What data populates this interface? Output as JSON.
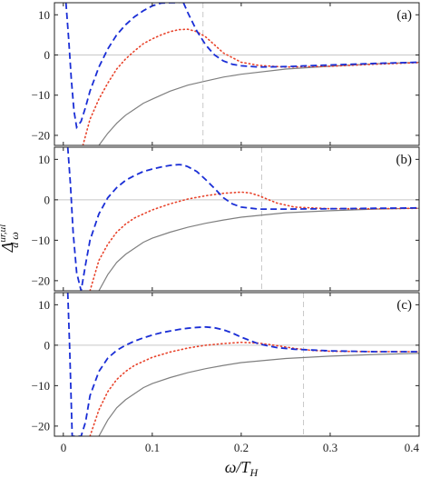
{
  "chart_data": {
    "type": "line",
    "xlabel": "ω/T_H",
    "ylabel": "Δ^{ur,ul}_{d ω}",
    "xlim": [
      -0.01,
      0.4
    ],
    "ylim": [
      -22.5,
      13
    ],
    "x_ticks": [
      0,
      0.1,
      0.2,
      0.3,
      0.4
    ],
    "x_tick_labels": [
      "0",
      "0.1",
      "0.2",
      "0.3",
      "0.4"
    ],
    "y_ticks": [
      -20,
      -10,
      0,
      10
    ],
    "y_tick_labels": [
      "−20",
      "−10",
      "0",
      "10"
    ],
    "grid": false,
    "legend": false,
    "panels": [
      {
        "label": "(a)",
        "vline_x": 0.157,
        "series": [
          {
            "style": "solid",
            "color": "#7f7f7f",
            "x": [
              0.04,
              0.05,
              0.06,
              0.07,
              0.08,
              0.09,
              0.1,
              0.12,
              0.14,
              0.16,
              0.18,
              0.2,
              0.25,
              0.3,
              0.35,
              0.4
            ],
            "y": [
              -22.5,
              -19.5,
              -17,
              -15,
              -13.5,
              -12,
              -11,
              -9,
              -7.5,
              -6.5,
              -5.5,
              -4.8,
              -3.5,
              -2.8,
              -2.2,
              -1.8
            ]
          },
          {
            "style": "dotted",
            "color": "#e8432b",
            "x": [
              0.022,
              0.03,
              0.04,
              0.05,
              0.06,
              0.07,
              0.08,
              0.09,
              0.1,
              0.11,
              0.12,
              0.13,
              0.14,
              0.15,
              0.16,
              0.17,
              0.18,
              0.2,
              0.22,
              0.25,
              0.3,
              0.35,
              0.4
            ],
            "y": [
              -22.5,
              -16,
              -11,
              -7,
              -3.5,
              -1,
              1,
              2.8,
              4,
              5,
              5.8,
              6.3,
              6.4,
              5.8,
              4.5,
              2.5,
              0.5,
              -1.8,
              -2.6,
              -3,
              -2.8,
              -2.3,
              -1.9
            ]
          },
          {
            "style": "dashed",
            "color": "#1a2ed6",
            "x": [
              0.003,
              0.006,
              0.009,
              0.012,
              0.015,
              0.02,
              0.025,
              0.03,
              0.04,
              0.05,
              0.06,
              0.07,
              0.08,
              0.09,
              0.1,
              0.11,
              0.12,
              0.13
            ],
            "y": [
              13,
              4,
              -6,
              -14,
              -18,
              -16.5,
              -13,
              -9,
              -3,
              1.5,
              5,
              7.5,
              9.5,
              11,
              12.2,
              12.9,
              13,
              13
            ]
          },
          {
            "style": "dashed",
            "color": "#1a2ed6",
            "x": [
              0.135,
              0.14,
              0.15,
              0.16,
              0.17,
              0.18,
              0.19,
              0.2,
              0.22,
              0.25,
              0.3,
              0.35,
              0.4
            ],
            "y": [
              13,
              10.5,
              6,
              2.5,
              0,
              -1.5,
              -2.3,
              -2.7,
              -3,
              -2.9,
              -2.5,
              -2.1,
              -1.8
            ]
          }
        ]
      },
      {
        "label": "(b)",
        "vline_x": 0.223,
        "series": [
          {
            "style": "solid",
            "color": "#7f7f7f",
            "x": [
              0.04,
              0.05,
              0.06,
              0.07,
              0.08,
              0.09,
              0.1,
              0.12,
              0.14,
              0.16,
              0.18,
              0.2,
              0.25,
              0.3,
              0.35,
              0.4
            ],
            "y": [
              -22.5,
              -18.5,
              -15.5,
              -13.5,
              -12,
              -10.5,
              -9.5,
              -8,
              -6.8,
              -5.8,
              -5,
              -4.3,
              -3.2,
              -2.7,
              -2.3,
              -2.1
            ]
          },
          {
            "style": "dotted",
            "color": "#e8432b",
            "x": [
              0.03,
              0.04,
              0.05,
              0.06,
              0.07,
              0.08,
              0.1,
              0.12,
              0.14,
              0.16,
              0.18,
              0.2,
              0.21,
              0.22,
              0.24,
              0.26,
              0.3,
              0.35,
              0.4
            ],
            "y": [
              -22.5,
              -15,
              -11,
              -8,
              -6,
              -4.5,
              -2.5,
              -1,
              0.2,
              1,
              1.6,
              1.9,
              1.7,
              1,
              -0.8,
              -1.8,
              -2.2,
              -2.2,
              -2.1
            ]
          },
          {
            "style": "dashed",
            "color": "#1a2ed6",
            "x": [
              0.005,
              0.008,
              0.011,
              0.015,
              0.02,
              0.025,
              0.03,
              0.04,
              0.05,
              0.06,
              0.07,
              0.08,
              0.09,
              0.1,
              0.11,
              0.12,
              0.13,
              0.135,
              0.14,
              0.15,
              0.16,
              0.17,
              0.18,
              0.19,
              0.2,
              0.22,
              0.25,
              0.3,
              0.35,
              0.4
            ],
            "y": [
              13,
              4,
              -8,
              -18,
              -22.5,
              -16,
              -10,
              -3.5,
              0.5,
              3,
              4.8,
              6,
              7,
              7.6,
              8.1,
              8.5,
              8.7,
              8.6,
              8.2,
              7,
              5,
              2.8,
              0.5,
              -1,
              -1.8,
              -2.3,
              -2.3,
              -2.2,
              -2.1,
              -2
            ]
          }
        ]
      },
      {
        "label": "(c)",
        "vline_x": 0.27,
        "series": [
          {
            "style": "solid",
            "color": "#7f7f7f",
            "x": [
              0.04,
              0.05,
              0.06,
              0.07,
              0.08,
              0.09,
              0.1,
              0.12,
              0.14,
              0.16,
              0.18,
              0.2,
              0.25,
              0.3,
              0.35,
              0.4
            ],
            "y": [
              -22.5,
              -18.5,
              -15.5,
              -13.5,
              -12,
              -10.5,
              -9.5,
              -8,
              -6.8,
              -5.8,
              -5,
              -4.3,
              -3.3,
              -2.7,
              -2.3,
              -2
            ]
          },
          {
            "style": "dotted",
            "color": "#e8432b",
            "x": [
              0.03,
              0.04,
              0.05,
              0.06,
              0.07,
              0.08,
              0.1,
              0.12,
              0.14,
              0.16,
              0.18,
              0.2,
              0.22,
              0.24,
              0.26,
              0.28,
              0.3,
              0.35,
              0.4
            ],
            "y": [
              -22.5,
              -16,
              -11.5,
              -8.5,
              -6.5,
              -5,
              -3,
              -1.7,
              -0.7,
              0,
              0.4,
              0.7,
              0.5,
              -0.1,
              -0.8,
              -1.3,
              -1.5,
              -1.6,
              -1.6
            ]
          },
          {
            "style": "dashed",
            "color": "#1a2ed6",
            "x": [
              0.005,
              0.007,
              0.01,
              0.012,
              0.02,
              0.025,
              0.03,
              0.04,
              0.05,
              0.06,
              0.07,
              0.08,
              0.09,
              0.1,
              0.11,
              0.12,
              0.13,
              0.14,
              0.15,
              0.16,
              0.17,
              0.18,
              0.19,
              0.2,
              0.22,
              0.24,
              0.26,
              0.28,
              0.3,
              0.35,
              0.4
            ],
            "y": [
              13,
              0,
              -22.5,
              -22.5,
              -22.5,
              -19,
              -12.5,
              -6.5,
              -3.2,
              -1.3,
              0,
              1,
              1.8,
              2.5,
              3.1,
              3.5,
              3.9,
              4.2,
              4.4,
              4.5,
              4.3,
              3.8,
              3,
              2,
              0.3,
              -0.6,
              -1,
              -1.2,
              -1.4,
              -1.6,
              -1.6
            ]
          }
        ]
      }
    ]
  }
}
